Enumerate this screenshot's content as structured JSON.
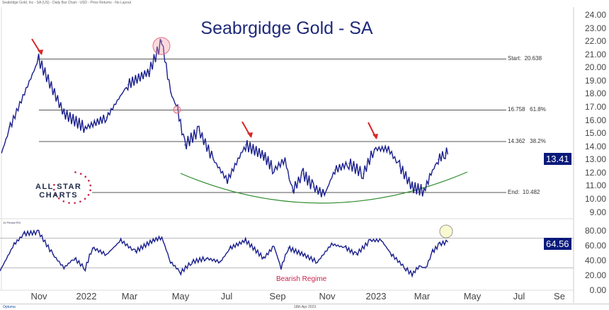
{
  "header": "Seabridge Gold, Inc - SA (US) - Daily Bar Chart - USD - Price Returns - No Layout",
  "footer": {
    "brand": "Optuma",
    "date": "18th Apr 2023"
  },
  "logo_text": "ALL STAR CHARTS",
  "colors": {
    "price": "#1a1f8c",
    "accent": "#0a1a7a",
    "arc": "#2e8b2e",
    "arrow": "#d62828",
    "regime": "#c8234a"
  },
  "chart_data": [
    {
      "type": "line",
      "title": "Seabrgidge Gold - SA",
      "ylim": [
        9,
        24
      ],
      "yticks": [
        "24.00",
        "23.00",
        "22.00",
        "21.00",
        "20.00",
        "19.00",
        "18.00",
        "17.00",
        "16.00",
        "15.00",
        "14.00",
        "13.00",
        "12.00",
        "11.00",
        "10.00",
        "9.00"
      ],
      "last_value": "13.41",
      "x": [
        "2021-09-15",
        "2021-09-26",
        "2021-11-01",
        "2021-12-03",
        "2021-12-30",
        "2022-01-26",
        "2022-02-22",
        "2022-03-21",
        "2022-04-06",
        "2022-04-17",
        "2022-04-26",
        "2022-05-05",
        "2022-05-23",
        "2022-06-10",
        "2022-06-28",
        "2022-07-21",
        "2022-08-13",
        "2022-08-26",
        "2022-09-09",
        "2022-09-18",
        "2022-10-02",
        "2022-10-15",
        "2022-10-29",
        "2022-11-11",
        "2022-11-29",
        "2022-12-17",
        "2022-12-31",
        "2023-01-18",
        "2023-02-01",
        "2023-02-17",
        "2023-03-04",
        "2023-03-13",
        "2023-03-22",
        "2023-03-31",
        "2023-04-03"
      ],
      "values": [
        13.5,
        15.5,
        20.6,
        16.5,
        15.4,
        16.2,
        18.7,
        19.7,
        22.0,
        18.1,
        16.8,
        14.1,
        15.2,
        13.0,
        11.4,
        14.1,
        13.3,
        12.2,
        13.0,
        10.6,
        11.9,
        10.9,
        10.3,
        12.2,
        12.7,
        11.9,
        13.8,
        13.8,
        12.5,
        10.9,
        10.6,
        11.9,
        13.0,
        13.5,
        13.41
      ],
      "levels": [
        {
          "label": "Start:  20.638",
          "value": 20.638
        },
        {
          "label": "16.758   61.8%",
          "value": 16.758
        },
        {
          "label": "14.362   38.2%",
          "value": 14.362
        },
        {
          "label": "End:  10.482",
          "value": 10.482
        }
      ]
    },
    {
      "type": "line",
      "title": "14 Period RSI",
      "ylim": [
        0,
        90
      ],
      "yticks": [
        "80.00",
        "60.00",
        "40.00",
        "20.00",
        "0.00"
      ],
      "last_value": "64.56",
      "bands": [
        70,
        30
      ],
      "annotation": "Bearish Regime",
      "x": [
        "2021-09-13",
        "2021-10-01",
        "2021-10-14",
        "2021-11-01",
        "2021-11-19",
        "2021-12-03",
        "2021-12-16",
        "2021-12-30",
        "2022-01-08",
        "2022-01-26",
        "2022-02-13",
        "2022-03-03",
        "2022-03-26",
        "2022-04-06",
        "2022-04-17",
        "2022-04-30",
        "2022-05-14",
        "2022-06-01",
        "2022-06-19",
        "2022-07-02",
        "2022-07-21",
        "2022-08-13",
        "2022-08-26",
        "2022-09-04",
        "2022-09-13",
        "2022-10-02",
        "2022-10-20",
        "2022-11-07",
        "2022-11-25",
        "2022-12-08",
        "2022-12-26",
        "2023-01-09",
        "2023-01-22",
        "2023-02-09",
        "2023-02-17",
        "2023-02-26",
        "2023-03-06",
        "2023-03-15",
        "2023-03-24",
        "2023-04-03"
      ],
      "values": [
        26,
        62,
        76,
        78,
        48,
        30,
        43,
        29,
        57,
        48,
        67,
        52,
        67,
        71,
        38,
        24,
        38,
        43,
        38,
        57,
        67,
        43,
        59,
        30,
        57,
        48,
        38,
        62,
        57,
        48,
        67,
        67,
        48,
        29,
        21,
        33,
        29,
        52,
        62,
        65
      ]
    }
  ],
  "xticks": [
    "Nov",
    "2022",
    "Mar",
    "May",
    "Jul",
    "Sep",
    "Nov",
    "2023",
    "Mar",
    "May",
    "Jul",
    "Se"
  ]
}
